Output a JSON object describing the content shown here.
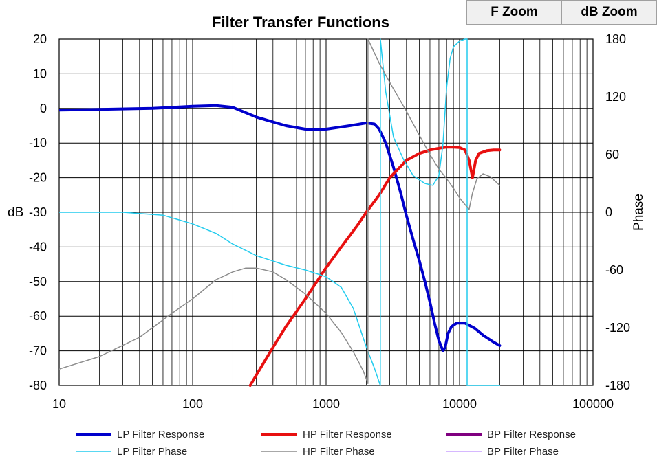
{
  "toolbar": {
    "f_zoom_label": "F Zoom",
    "db_zoom_label": "dB Zoom"
  },
  "chart_data": {
    "type": "line",
    "title": "Filter Transfer Functions",
    "xlabel": "",
    "ylabel": "dB",
    "y2label": "Phase",
    "x_scale": "log",
    "xlim": [
      10,
      100000
    ],
    "ylim": [
      -80,
      20
    ],
    "y2lim": [
      -180,
      180
    ],
    "x_ticks": [
      10,
      100,
      1000,
      10000,
      100000
    ],
    "x_tick_labels": [
      "10",
      "100",
      "1000",
      "10000",
      "100000"
    ],
    "y_ticks": [
      20,
      10,
      0,
      -10,
      -20,
      -30,
      -40,
      -50,
      -60,
      -70,
      -80
    ],
    "y2_ticks": [
      180,
      120,
      60,
      0,
      -60,
      -120,
      -180
    ],
    "grid": true,
    "legend": "bottom",
    "series": [
      {
        "name": "LP Filter Response",
        "axis": "left",
        "color": "#0000cc",
        "width": 4,
        "x": [
          10,
          20,
          50,
          100,
          150,
          200,
          300,
          500,
          700,
          1000,
          1500,
          2000,
          2300,
          2500,
          2800,
          3200,
          3600,
          4000,
          4500,
          5000,
          5500,
          6000,
          6500,
          7000,
          7500,
          7800,
          8200,
          8700,
          9500,
          11000,
          13000,
          15000,
          18000,
          20000
        ],
        "y": [
          -0.5,
          -0.3,
          0,
          0.6,
          0.8,
          0.3,
          -2.5,
          -5,
          -6,
          -6,
          -5,
          -4.2,
          -4.5,
          -6,
          -10,
          -17,
          -24,
          -31,
          -38,
          -44,
          -50,
          -56,
          -62,
          -67,
          -70,
          -69,
          -65,
          -63,
          -62,
          -62,
          -63.5,
          -65.5,
          -67.5,
          -68.5
        ]
      },
      {
        "name": "HP Filter Response",
        "axis": "left",
        "color": "#e81010",
        "width": 4,
        "x": [
          270,
          300,
          400,
          500,
          700,
          1000,
          1300,
          1700,
          2000,
          2500,
          3000,
          4000,
          5000,
          6000,
          7000,
          8000,
          9000,
          10000,
          11000,
          11800,
          12500,
          13200,
          14000,
          16000,
          18000,
          20000
        ],
        "y": [
          -80,
          -77,
          -69,
          -63,
          -55,
          -46,
          -40,
          -34,
          -30,
          -25,
          -20,
          -15,
          -13,
          -12,
          -11.5,
          -11.2,
          -11.2,
          -11.3,
          -12,
          -15,
          -20,
          -15,
          -13,
          -12.2,
          -12,
          -12
        ]
      },
      {
        "name": "BP Filter Response",
        "axis": "left",
        "color": "#800080",
        "width": 3,
        "x": [],
        "y": []
      },
      {
        "name": "LP Filter Phase",
        "axis": "right",
        "color": "#22ccee",
        "width": 1.5,
        "x": [
          10,
          30,
          60,
          100,
          150,
          200,
          300,
          500,
          700,
          1000,
          1300,
          1600,
          2000,
          2300,
          2549,
          2551,
          2800,
          3200,
          3800,
          4500,
          5500,
          6300,
          7000,
          7500,
          8000,
          8500,
          9000,
          10000,
          11000,
          11399,
          11401,
          13000,
          16000,
          20000
        ],
        "y": [
          0,
          0,
          -3,
          -12,
          -22,
          -33,
          -45,
          -55,
          -60,
          -67,
          -78,
          -100,
          -140,
          -162,
          -180,
          180,
          125,
          78,
          55,
          38,
          30,
          28,
          38,
          70,
          130,
          160,
          172,
          178,
          180,
          180,
          -180,
          -180,
          -180,
          -180
        ]
      },
      {
        "name": "HP Filter Phase",
        "axis": "right",
        "color": "#8c8c8c",
        "width": 1.5,
        "x": [
          10,
          20,
          40,
          70,
          100,
          150,
          200,
          250,
          300,
          400,
          500,
          700,
          1000,
          1300,
          1600,
          1900,
          2059,
          2061,
          2500,
          3000,
          4000,
          5000,
          6000,
          7000,
          8000,
          9000,
          10000,
          11000,
          11800,
          12500,
          13500,
          15000,
          17000,
          20000
        ],
        "y": [
          -163,
          -150,
          -130,
          -105,
          -90,
          -70,
          -62,
          -58,
          -58,
          -62,
          -70,
          -85,
          -105,
          -125,
          -145,
          -165,
          -178,
          180,
          155,
          135,
          105,
          80,
          60,
          45,
          35,
          25,
          15,
          8,
          3,
          20,
          35,
          40,
          37,
          28
        ]
      },
      {
        "name": "BP Filter Phase",
        "axis": "right",
        "color": "#c8a0ff",
        "width": 1.5,
        "x": [],
        "y": []
      }
    ]
  }
}
